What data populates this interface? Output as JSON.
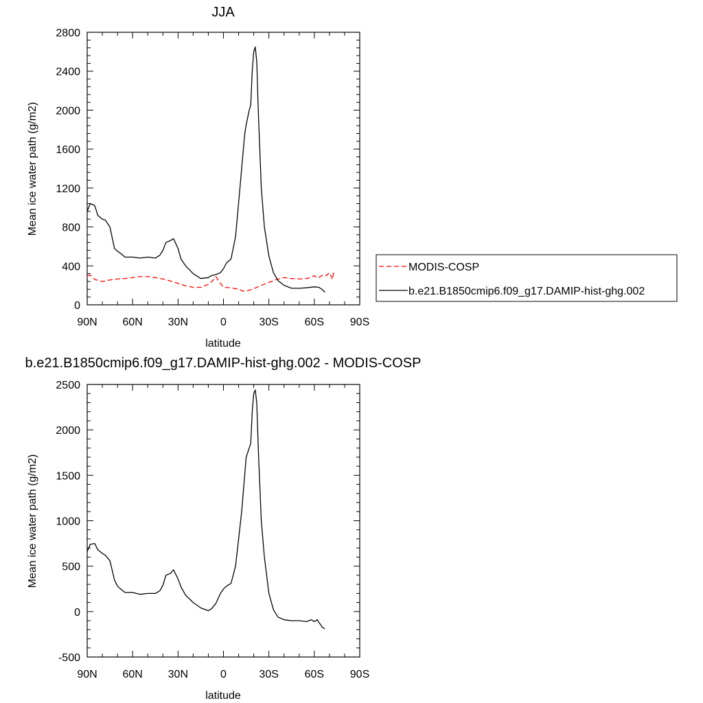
{
  "chart_data": [
    {
      "type": "line",
      "title": "JJA",
      "xlabel": "latitude",
      "ylabel": "Mean ice water path (g/m2)",
      "xlim": [
        90,
        -90
      ],
      "ylim": [
        0,
        2800
      ],
      "xticks": [
        90,
        60,
        30,
        0,
        -30,
        -60,
        -90
      ],
      "xtick_labels": [
        "90N",
        "60N",
        "30N",
        "0",
        "30S",
        "60S",
        "90S"
      ],
      "yticks": [
        0,
        400,
        800,
        1200,
        1600,
        2000,
        2400,
        2800
      ],
      "ytick_labels": [
        "0",
        "400",
        "800",
        "1200",
        "1600",
        "2000",
        "2400",
        "2800"
      ],
      "legend": {
        "placement": "right",
        "entries": [
          "MODIS-COSP",
          "b.e21.B1850cmip6.f09_g17.DAMIP-hist-ghg.002"
        ]
      },
      "series": [
        {
          "name": "MODIS-COSP",
          "color": "#ff0000",
          "dash": "dashed",
          "x": [
            90,
            88,
            85,
            80,
            75,
            70,
            65,
            60,
            55,
            50,
            45,
            40,
            35,
            30,
            25,
            20,
            15,
            10,
            7,
            5,
            3,
            0,
            -5,
            -10,
            -13,
            -15,
            -20,
            -25,
            -30,
            -35,
            -40,
            -45,
            -50,
            -55,
            -58,
            -60,
            -62,
            -64,
            -66,
            -68,
            -70,
            -72,
            -73
          ],
          "y": [
            300,
            305,
            260,
            240,
            255,
            265,
            270,
            280,
            290,
            290,
            280,
            265,
            245,
            220,
            195,
            180,
            180,
            210,
            250,
            290,
            240,
            180,
            175,
            160,
            140,
            140,
            165,
            200,
            230,
            260,
            280,
            270,
            265,
            270,
            285,
            300,
            275,
            290,
            310,
            300,
            330,
            260,
            360
          ]
        },
        {
          "name": "b.e21.B1850cmip6.f09_g17.DAMIP-hist-ghg.002",
          "color": "#000000",
          "dash": "solid",
          "x": [
            90,
            88,
            85,
            83,
            80,
            78,
            75,
            72,
            70,
            68,
            65,
            60,
            55,
            50,
            45,
            42,
            40,
            38,
            35,
            33,
            30,
            28,
            25,
            20,
            15,
            10,
            8,
            5,
            2,
            0,
            -2,
            -5,
            -8,
            -10,
            -12,
            -14,
            -15,
            -17,
            -18,
            -19,
            -20,
            -21,
            -22,
            -23,
            -24,
            -25,
            -27,
            -30,
            -33,
            -36,
            -40,
            -45,
            -50,
            -55,
            -60,
            -63,
            -65,
            -67
          ],
          "y": [
            960,
            1040,
            1020,
            920,
            880,
            870,
            800,
            580,
            550,
            530,
            490,
            490,
            480,
            490,
            480,
            510,
            560,
            640,
            660,
            680,
            580,
            470,
            400,
            320,
            270,
            280,
            300,
            310,
            330,
            370,
            430,
            470,
            700,
            1050,
            1400,
            1750,
            1850,
            2000,
            2050,
            2400,
            2600,
            2650,
            2500,
            2000,
            1600,
            1200,
            800,
            500,
            330,
            250,
            200,
            170,
            170,
            175,
            185,
            180,
            160,
            130
          ]
        }
      ]
    },
    {
      "type": "line",
      "title": "b.e21.B1850cmip6.f09_g17.DAMIP-hist-ghg.002 - MODIS-COSP",
      "xlabel": "latitude",
      "ylabel": "Mean ice water path (g/m2)",
      "xlim": [
        90,
        -90
      ],
      "ylim": [
        -500,
        2500
      ],
      "xticks": [
        90,
        60,
        30,
        0,
        -30,
        -60,
        -90
      ],
      "xtick_labels": [
        "90N",
        "60N",
        "30N",
        "0",
        "30S",
        "60S",
        "90S"
      ],
      "yticks": [
        -500,
        0,
        500,
        1000,
        1500,
        2000,
        2500
      ],
      "ytick_labels": [
        "-500",
        "0",
        "500",
        "1000",
        "1500",
        "2000",
        "2500"
      ],
      "series": [
        {
          "color": "#000000",
          "dash": "solid",
          "x": [
            90,
            88,
            85,
            83,
            80,
            78,
            75,
            72,
            70,
            68,
            65,
            60,
            55,
            50,
            45,
            42,
            40,
            38,
            35,
            33,
            30,
            28,
            25,
            20,
            15,
            10,
            8,
            5,
            2,
            0,
            -2,
            -5,
            -8,
            -10,
            -12,
            -14,
            -15,
            -17,
            -18,
            -19,
            -20,
            -21,
            -22,
            -23,
            -24,
            -25,
            -27,
            -30,
            -33,
            -36,
            -40,
            -45,
            -50,
            -55,
            -58,
            -60,
            -62,
            -63,
            -64,
            -65,
            -67
          ],
          "y": [
            660,
            740,
            750,
            680,
            640,
            620,
            560,
            350,
            280,
            250,
            210,
            210,
            190,
            200,
            200,
            230,
            290,
            400,
            420,
            460,
            360,
            270,
            180,
            100,
            40,
            10,
            30,
            90,
            200,
            250,
            280,
            310,
            500,
            800,
            1100,
            1500,
            1700,
            1800,
            1850,
            2200,
            2400,
            2440,
            2300,
            1800,
            1400,
            1000,
            600,
            200,
            20,
            -60,
            -90,
            -100,
            -100,
            -110,
            -90,
            -110,
            -90,
            -120,
            -140,
            -170,
            -190
          ]
        }
      ]
    }
  ]
}
